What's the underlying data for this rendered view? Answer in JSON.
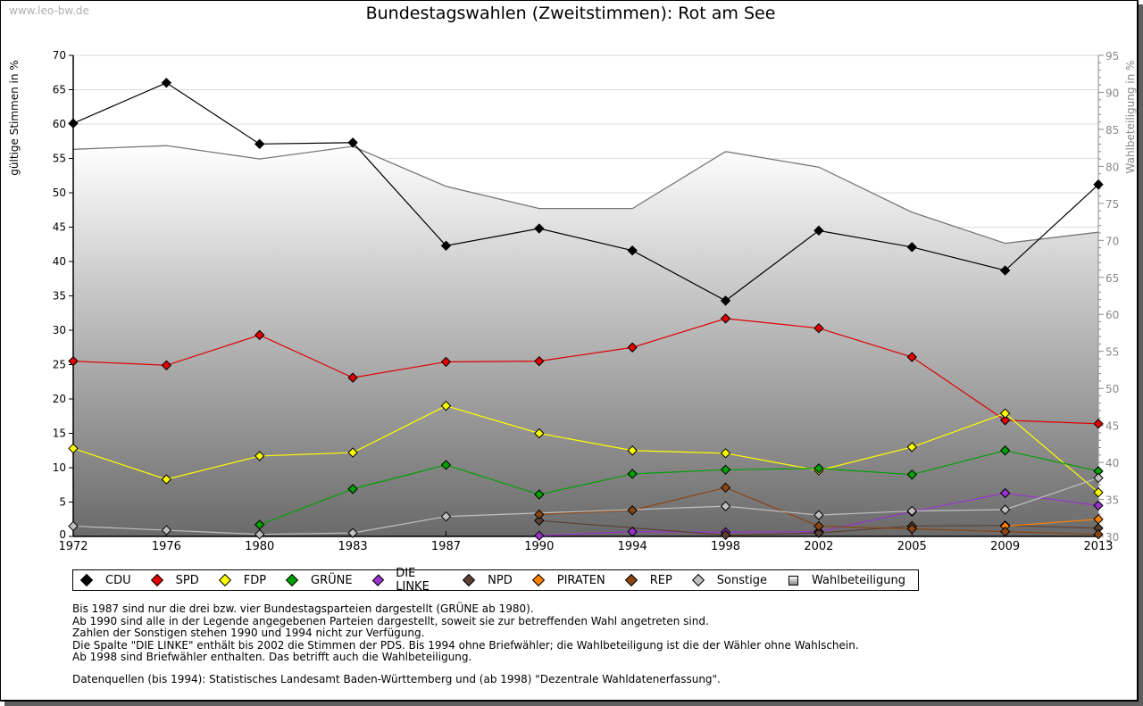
{
  "watermark": "www.leo-bw.de",
  "chart_data": {
    "type": "line",
    "title": "Bundestagswahlen (Zweitstimmen): Rot am See",
    "ylabel": "gültige Stimmen in %",
    "ylabel_right": "Wahlbeteiligung in %",
    "xlabel": "",
    "ylim": [
      0,
      70
    ],
    "ylim_right": [
      30,
      95
    ],
    "yticks": [
      "0",
      "5",
      "10",
      "15",
      "20",
      "25",
      "30",
      "35",
      "40",
      "45",
      "50",
      "55",
      "60",
      "65",
      "70"
    ],
    "yticks_right": [
      "30",
      "35",
      "40",
      "45",
      "50",
      "55",
      "60",
      "65",
      "70",
      "75",
      "80",
      "85",
      "90",
      "95"
    ],
    "grid": true,
    "legend_position": "bottom",
    "categories": [
      "1972",
      "1976",
      "1980",
      "1983",
      "1987",
      "1990",
      "1994",
      "1998",
      "2002",
      "2005",
      "2009",
      "2013"
    ],
    "turnout": {
      "name": "Wahlbeteiligung",
      "axis": "right",
      "type": "area",
      "values": [
        82.3,
        82.8,
        81.0,
        82.7,
        77.3,
        74.3,
        74.3,
        82.0,
        79.9,
        73.8,
        69.6,
        71.1
      ]
    },
    "series": [
      {
        "name": "CDU",
        "color": "#000000",
        "values": [
          60.1,
          66.0,
          57.1,
          57.3,
          42.3,
          44.8,
          41.6,
          34.3,
          44.5,
          42.1,
          38.7,
          51.2
        ]
      },
      {
        "name": "SPD",
        "color": "#e00000",
        "values": [
          25.5,
          24.9,
          29.3,
          23.1,
          25.4,
          25.5,
          27.5,
          31.7,
          30.3,
          26.1,
          16.9,
          16.4
        ]
      },
      {
        "name": "FDP",
        "color": "#ffff00",
        "values": [
          12.8,
          8.3,
          11.7,
          12.2,
          19.0,
          15.0,
          12.5,
          12.1,
          9.6,
          13.0,
          17.9,
          6.4
        ]
      },
      {
        "name": "GRÜNE",
        "color": "#00a000",
        "values": [
          null,
          null,
          1.7,
          6.9,
          10.4,
          6.1,
          9.1,
          9.7,
          9.9,
          9.0,
          12.5,
          9.5
        ]
      },
      {
        "name": "DIE LINKE",
        "color": "#9933cc",
        "values": [
          null,
          null,
          null,
          null,
          null,
          0.1,
          0.7,
          0.6,
          0.7,
          3.6,
          6.3,
          4.5
        ]
      },
      {
        "name": "NPD",
        "color": "#5c4033",
        "values": [
          null,
          null,
          null,
          null,
          null,
          2.3,
          null,
          0.2,
          0.5,
          1.5,
          1.6,
          1.2
        ]
      },
      {
        "name": "PIRATEN",
        "color": "#ff8000",
        "values": [
          null,
          null,
          null,
          null,
          null,
          null,
          null,
          null,
          null,
          null,
          1.5,
          2.5
        ]
      },
      {
        "name": "REP",
        "color": "#8b4513",
        "values": [
          null,
          null,
          null,
          null,
          null,
          3.2,
          3.8,
          7.1,
          1.5,
          1.1,
          0.7,
          0.3
        ]
      },
      {
        "name": "Sonstige",
        "color": "#c0c0c0",
        "values": [
          1.5,
          0.9,
          0.3,
          0.5,
          2.9,
          null,
          null,
          4.4,
          3.1,
          3.7,
          3.9,
          8.5
        ]
      }
    ]
  },
  "legend": [
    {
      "label": "CDU",
      "color": "#000000"
    },
    {
      "label": "SPD",
      "color": "#e00000"
    },
    {
      "label": "FDP",
      "color": "#ffff00"
    },
    {
      "label": "GRÜNE",
      "color": "#00a000"
    },
    {
      "label": "DIE LINKE",
      "color": "#9933cc"
    },
    {
      "label": "NPD",
      "color": "#5c4033"
    },
    {
      "label": "PIRATEN",
      "color": "#ff8000"
    },
    {
      "label": "REP",
      "color": "#8b4513"
    },
    {
      "label": "Sonstige",
      "color": "#c0c0c0"
    },
    {
      "label": "Wahlbeteiligung",
      "color": "#aaaaaa"
    }
  ],
  "notes": [
    "Bis 1987 sind nur die drei bzw. vier Bundestagsparteien dargestellt (GRÜNE ab 1980).",
    "Ab 1990 sind alle in der Legende angegebenen Parteien dargestellt, soweit sie zur betreffenden Wahl angetreten sind.",
    "Zahlen der Sonstigen stehen 1990 und 1994 nicht zur Verfügung.",
    "Die Spalte \"DIE LINKE\" enthält bis 2002 die Stimmen der PDS. Bis 1994 ohne Briefwähler; die Wahlbeteiligung ist die der Wähler ohne Wahlschein.",
    "Ab 1998 sind Briefwähler enthalten. Das betrifft auch die Wahlbeteiligung."
  ],
  "source": "Datenquellen (bis 1994): Statistisches Landesamt Baden-Württemberg und (ab 1998) \"Dezentrale Wahldatenerfassung\"."
}
